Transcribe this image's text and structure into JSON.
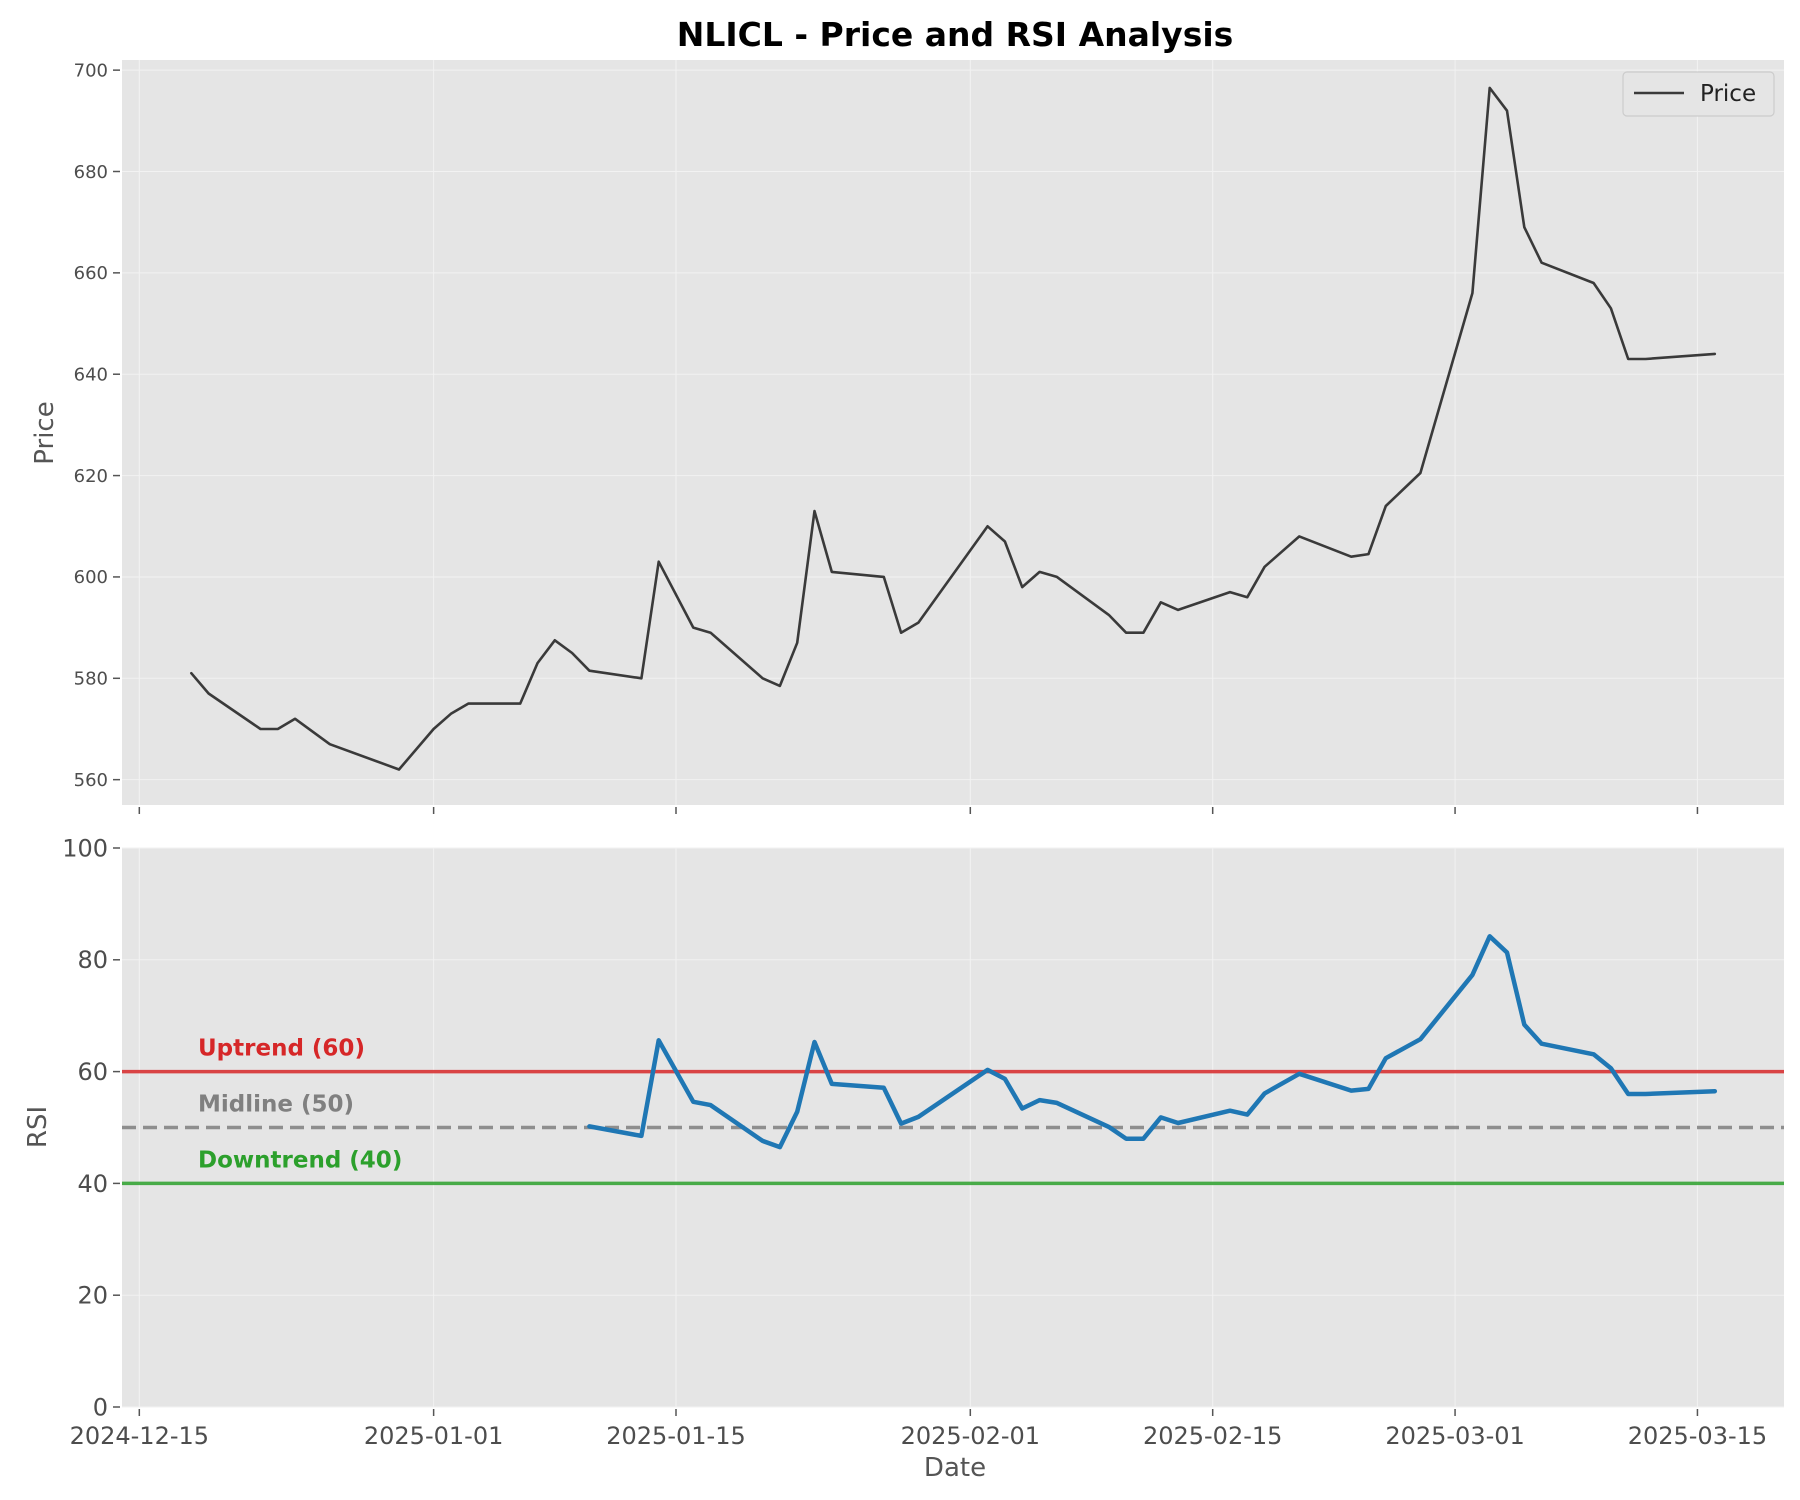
{
  "chart_data": {
    "type": "line",
    "title": "NLICL - Price and RSI Analysis",
    "xlabel": "Date",
    "x_ticks": [
      "2024-12-15",
      "2025-01-01",
      "2025-01-15",
      "2025-02-01",
      "2025-02-15",
      "2025-03-01",
      "2025-03-15"
    ],
    "x_range": [
      "2024-12-14",
      "2025-03-20"
    ],
    "grid": true,
    "price_panel": {
      "ylabel": "Price",
      "ylim": [
        555,
        702
      ],
      "y_ticks": [
        560,
        580,
        600,
        620,
        640,
        660,
        680,
        700
      ],
      "legend": {
        "position": "top-right",
        "entries": [
          "Price"
        ]
      },
      "series": [
        {
          "name": "Price",
          "color": "#3a3a3a",
          "points": [
            [
              "2024-12-18",
              581
            ],
            [
              "2024-12-19",
              577
            ],
            [
              "2024-12-22",
              570
            ],
            [
              "2024-12-23",
              570
            ],
            [
              "2024-12-24",
              572
            ],
            [
              "2024-12-26",
              567
            ],
            [
              "2024-12-30",
              562
            ],
            [
              "2025-01-01",
              570
            ],
            [
              "2025-01-02",
              573
            ],
            [
              "2025-01-03",
              575
            ],
            [
              "2025-01-06",
              575
            ],
            [
              "2025-01-07",
              583
            ],
            [
              "2025-01-08",
              587.5
            ],
            [
              "2025-01-09",
              585
            ],
            [
              "2025-01-10",
              581.5
            ],
            [
              "2025-01-13",
              580
            ],
            [
              "2025-01-14",
              603
            ],
            [
              "2025-01-16",
              590
            ],
            [
              "2025-01-17",
              589
            ],
            [
              "2025-01-20",
              580
            ],
            [
              "2025-01-21",
              578.5
            ],
            [
              "2025-01-22",
              587
            ],
            [
              "2025-01-23",
              613
            ],
            [
              "2025-01-24",
              601
            ],
            [
              "2025-01-27",
              600
            ],
            [
              "2025-01-28",
              589
            ],
            [
              "2025-01-29",
              591
            ],
            [
              "2025-02-02",
              610
            ],
            [
              "2025-02-03",
              607
            ],
            [
              "2025-02-04",
              598
            ],
            [
              "2025-02-05",
              601
            ],
            [
              "2025-02-06",
              600
            ],
            [
              "2025-02-09",
              592.5
            ],
            [
              "2025-02-10",
              589
            ],
            [
              "2025-02-11",
              589
            ],
            [
              "2025-02-12",
              595
            ],
            [
              "2025-02-13",
              593.5
            ],
            [
              "2025-02-16",
              597
            ],
            [
              "2025-02-17",
              596
            ],
            [
              "2025-02-18",
              602
            ],
            [
              "2025-02-20",
              608
            ],
            [
              "2025-02-23",
              604
            ],
            [
              "2025-02-24",
              604.5
            ],
            [
              "2025-02-25",
              614
            ],
            [
              "2025-02-27",
              620.5
            ],
            [
              "2025-03-02",
              656
            ],
            [
              "2025-03-03",
              696.5
            ],
            [
              "2025-03-04",
              692
            ],
            [
              "2025-03-05",
              669
            ],
            [
              "2025-03-06",
              662
            ],
            [
              "2025-03-09",
              658
            ],
            [
              "2025-03-10",
              653
            ],
            [
              "2025-03-11",
              643
            ],
            [
              "2025-03-12",
              643
            ],
            [
              "2025-03-16",
              644
            ]
          ]
        }
      ]
    },
    "rsi_panel": {
      "ylabel": "RSI",
      "ylim": [
        0,
        100
      ],
      "y_ticks": [
        0,
        20,
        40,
        60,
        80,
        100
      ],
      "reference_lines": [
        {
          "value": 60,
          "label": "Uptrend (60)",
          "color": "#d62728",
          "style": "solid"
        },
        {
          "value": 50,
          "label": "Midline (50)",
          "color": "#808080",
          "style": "dashed"
        },
        {
          "value": 40,
          "label": "Downtrend (40)",
          "color": "#2ca02c",
          "style": "solid"
        }
      ],
      "series": [
        {
          "name": "RSI",
          "color": "#1f77b4",
          "points": [
            [
              "2025-01-10",
              50.2
            ],
            [
              "2025-01-13",
              48.5
            ],
            [
              "2025-01-14",
              65.6
            ],
            [
              "2025-01-16",
              54.6
            ],
            [
              "2025-01-17",
              54
            ],
            [
              "2025-01-20",
              47.6
            ],
            [
              "2025-01-21",
              46.5
            ],
            [
              "2025-01-22",
              52.8
            ],
            [
              "2025-01-23",
              65.3
            ],
            [
              "2025-01-24",
              57.8
            ],
            [
              "2025-01-27",
              57.1
            ],
            [
              "2025-01-28",
              50.7
            ],
            [
              "2025-01-29",
              51.9
            ],
            [
              "2025-02-02",
              60.3
            ],
            [
              "2025-02-03",
              58.7
            ],
            [
              "2025-02-04",
              53.4
            ],
            [
              "2025-02-05",
              54.9
            ],
            [
              "2025-02-06",
              54.4
            ],
            [
              "2025-02-09",
              50.1
            ],
            [
              "2025-02-10",
              48
            ],
            [
              "2025-02-11",
              48
            ],
            [
              "2025-02-12",
              51.8
            ],
            [
              "2025-02-13",
              50.8
            ],
            [
              "2025-02-16",
              53
            ],
            [
              "2025-02-17",
              52.3
            ],
            [
              "2025-02-18",
              56.1
            ],
            [
              "2025-02-20",
              59.6
            ],
            [
              "2025-02-23",
              56.6
            ],
            [
              "2025-02-24",
              56.9
            ],
            [
              "2025-02-25",
              62.4
            ],
            [
              "2025-02-27",
              65.8
            ],
            [
              "2025-03-02",
              77.3
            ],
            [
              "2025-03-03",
              84.2
            ],
            [
              "2025-03-04",
              81.3
            ],
            [
              "2025-03-05",
              68.4
            ],
            [
              "2025-03-06",
              65
            ],
            [
              "2025-03-09",
              63.1
            ],
            [
              "2025-03-10",
              60.6
            ],
            [
              "2025-03-11",
              56
            ],
            [
              "2025-03-12",
              56
            ],
            [
              "2025-03-16",
              56.5
            ]
          ]
        }
      ]
    }
  }
}
